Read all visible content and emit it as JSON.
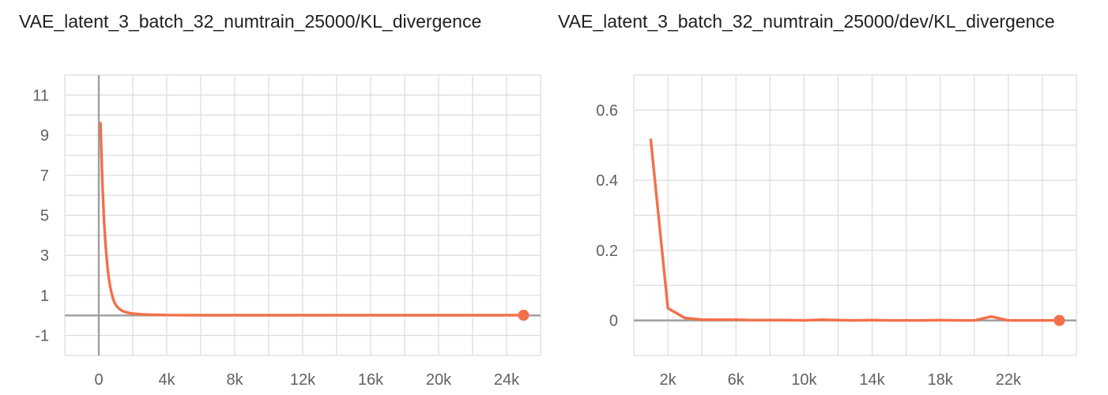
{
  "chart_data": [
    {
      "type": "line",
      "title": "VAE_latent_3_batch_32_numtrain_25000/KL_divergence",
      "xlabel": "",
      "ylabel": "",
      "xlim": [
        -2000,
        26000
      ],
      "ylim": [
        -2,
        12
      ],
      "x_ticks": [
        "0",
        "4k",
        "8k",
        "12k",
        "16k",
        "20k",
        "24k"
      ],
      "x_tick_values": [
        0,
        4000,
        8000,
        12000,
        16000,
        20000,
        24000
      ],
      "y_ticks": [
        "11",
        "9",
        "7",
        "5",
        "3",
        "1",
        "-1"
      ],
      "y_tick_values": [
        11,
        9,
        7,
        5,
        3,
        1,
        -1
      ],
      "grid": true,
      "series": [
        {
          "color": "#f2704a",
          "x": [
            100,
            200,
            300,
            400,
            500,
            600,
            700,
            800,
            900,
            1000,
            1200,
            1400,
            1600,
            1800,
            2000,
            2500,
            3000,
            3500,
            4000,
            6000,
            8000,
            10000,
            12000,
            14000,
            16000,
            18000,
            20000,
            22000,
            24000,
            25000
          ],
          "y": [
            9.6,
            6.9,
            4.9,
            3.5,
            2.5,
            1.8,
            1.3,
            0.95,
            0.7,
            0.52,
            0.33,
            0.22,
            0.16,
            0.12,
            0.09,
            0.06,
            0.04,
            0.03,
            0.02,
            0.01,
            0.01,
            0.01,
            0.01,
            0.01,
            0.01,
            0.01,
            0.01,
            0.01,
            0.01,
            0.01
          ]
        }
      ]
    },
    {
      "type": "line",
      "title": "VAE_latent_3_batch_32_numtrain_25000/dev/KL_divergence",
      "xlabel": "",
      "ylabel": "",
      "xlim": [
        0,
        26000
      ],
      "ylim": [
        -0.1,
        0.7
      ],
      "x_ticks": [
        "2k",
        "6k",
        "10k",
        "14k",
        "18k",
        "22k"
      ],
      "x_tick_values": [
        2000,
        6000,
        10000,
        14000,
        18000,
        22000
      ],
      "y_ticks": [
        "0.6",
        "0.4",
        "0.2",
        "0"
      ],
      "y_tick_values": [
        0.6,
        0.4,
        0.2,
        0
      ],
      "grid": true,
      "series": [
        {
          "color": "#f2704a",
          "x": [
            1000,
            2000,
            3000,
            4000,
            5000,
            6000,
            7000,
            8000,
            9000,
            10000,
            11000,
            12000,
            13000,
            14000,
            15000,
            16000,
            17000,
            18000,
            19000,
            20000,
            21000,
            22000,
            23000,
            24000,
            25000
          ],
          "y": [
            0.515,
            0.035,
            0.007,
            0.002,
            0.002,
            0.002,
            0.001,
            0.001,
            0.001,
            0.0,
            0.002,
            0.001,
            0.0,
            0.001,
            0.0,
            0.0,
            0.0,
            0.001,
            0.0,
            0.0,
            0.011,
            0.0,
            0.0,
            0.0,
            0.0
          ]
        }
      ]
    }
  ]
}
